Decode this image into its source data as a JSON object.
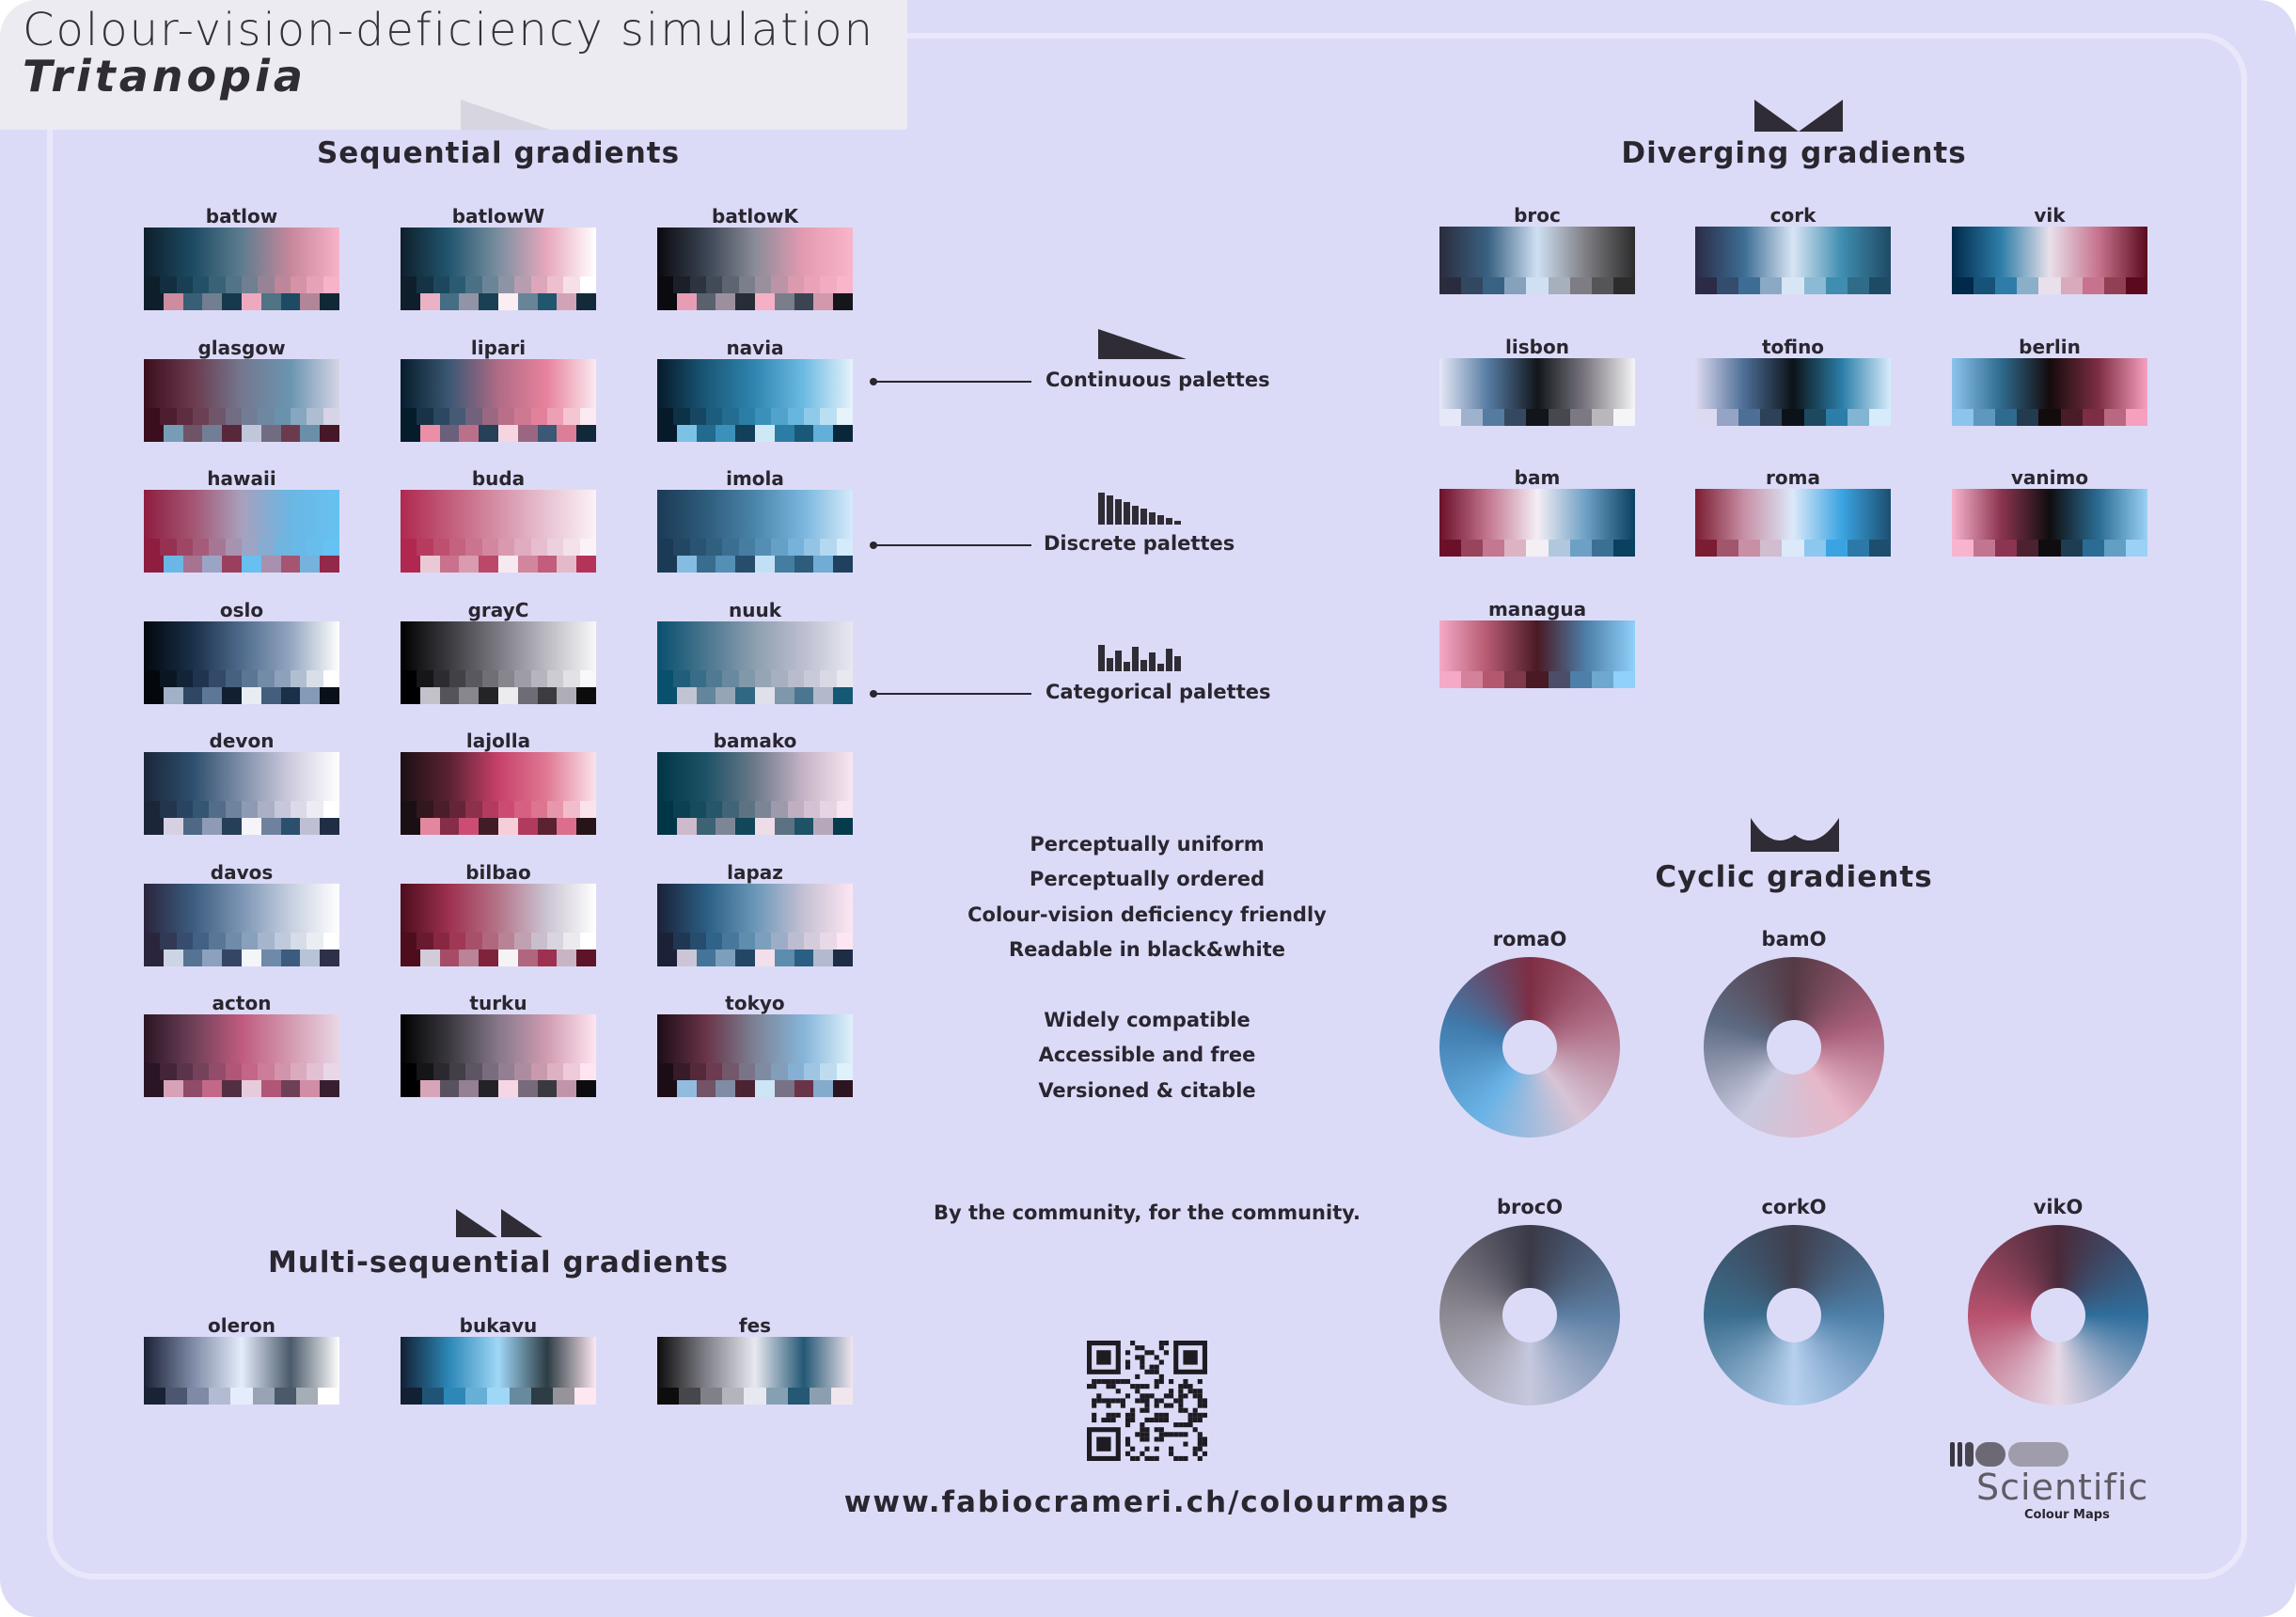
{
  "header": {
    "title": "Colour-vision-deficiency simulation",
    "subtitle": "Tritanopia"
  },
  "sections": {
    "sequential": "Sequential gradients",
    "diverging": "Diverging gradients",
    "multi": "Multi-sequential gradients",
    "cyclic": "Cyclic gradients"
  },
  "legend": {
    "continuous": "Continuous palettes",
    "discrete": "Discrete palettes",
    "categorical": "Categorical palettes"
  },
  "features": [
    "Perceptually uniform",
    "Perceptually ordered",
    "Colour-vision deficiency friendly",
    "Readable in black&white",
    "Widely compatible",
    "Accessible and free",
    "Versioned & citable"
  ],
  "community": "By the community, for the community.",
  "url": "www.fabiocrameri.ch/colourmaps",
  "logo": {
    "name": "Scientific",
    "tagline": "Colour Maps"
  },
  "colors": {
    "background": "#dcdbf7",
    "ink": "#2a2630"
  },
  "sequential_maps": [
    {
      "name": "batlow",
      "stops": [
        "#0e1f2b",
        "#1d4b63",
        "#5d7d8f",
        "#c7879b",
        "#f7b3c8"
      ]
    },
    {
      "name": "batlowW",
      "stops": [
        "#0e1f2b",
        "#22566f",
        "#7a8fa0",
        "#e8a8bd",
        "#ffffff"
      ]
    },
    {
      "name": "batlowK",
      "stops": [
        "#0a0a0f",
        "#3a4452",
        "#8a8c99",
        "#e49bb1",
        "#f9b5ca"
      ]
    },
    {
      "name": "glasgow",
      "stops": [
        "#3b0e1e",
        "#6b3a4d",
        "#74788f",
        "#6a95b0",
        "#d6d4e6"
      ]
    },
    {
      "name": "lipari",
      "stops": [
        "#051c2b",
        "#3b5874",
        "#b06b85",
        "#e8839d",
        "#fbeaf1"
      ]
    },
    {
      "name": "navia",
      "stops": [
        "#061a2a",
        "#1a5878",
        "#2f86b0",
        "#6dbbe3",
        "#e7f3fb"
      ]
    },
    {
      "name": "hawaii",
      "stops": [
        "#8e1d40",
        "#a45572",
        "#a8a0bd",
        "#6ab6e3",
        "#66c2f2"
      ]
    },
    {
      "name": "buda",
      "stops": [
        "#b0284f",
        "#c25d7b",
        "#d690a7",
        "#e8c3d3",
        "#fbf2f7"
      ]
    },
    {
      "name": "imola",
      "stops": [
        "#1b3a55",
        "#2e5c7b",
        "#4b85ab",
        "#7ab6de",
        "#d4ebfb"
      ]
    },
    {
      "name": "oslo",
      "stops": [
        "#03080e",
        "#1a2f48",
        "#4f6b8c",
        "#93a6c0",
        "#ffffff"
      ]
    },
    {
      "name": "grayC",
      "stops": [
        "#000000",
        "#3c3b40",
        "#7b7a82",
        "#bcbbc3",
        "#f8f8fa"
      ]
    },
    {
      "name": "nuuk",
      "stops": [
        "#08506e",
        "#4a7690",
        "#8c9fb0",
        "#bdbfd0",
        "#e8e8f1"
      ]
    },
    {
      "name": "devon",
      "stops": [
        "#1b2639",
        "#2d4f6e",
        "#7f8fa9",
        "#cfcbdf",
        "#ffffff"
      ]
    },
    {
      "name": "lajolla",
      "stops": [
        "#1a1013",
        "#5b2233",
        "#c7416a",
        "#e07a93",
        "#fbe3ec"
      ]
    },
    {
      "name": "bamako",
      "stops": [
        "#003546",
        "#1e5266",
        "#6b7a8a",
        "#c7b4c7",
        "#f8e6f2"
      ]
    },
    {
      "name": "davos",
      "stops": [
        "#2a253d",
        "#3c5c7f",
        "#7c95b4",
        "#c6cfe0",
        "#ffffff"
      ]
    },
    {
      "name": "bilbao",
      "stops": [
        "#4d0d1c",
        "#9e3150",
        "#b57489",
        "#cbc5d3",
        "#ffffff"
      ]
    },
    {
      "name": "lapaz",
      "stops": [
        "#1b2137",
        "#2a5e83",
        "#6a97b8",
        "#c5c1d4",
        "#fde6f2"
      ]
    },
    {
      "name": "acton",
      "stops": [
        "#2a1524",
        "#6e4058",
        "#c05b7e",
        "#d49aaf",
        "#e9d7e7"
      ]
    },
    {
      "name": "turku",
      "stops": [
        "#000000",
        "#3b3940",
        "#86788a",
        "#d09cb1",
        "#ffe5f1"
      ]
    },
    {
      "name": "tokyo",
      "stops": [
        "#1c0c16",
        "#6a3448",
        "#7d8296",
        "#86b5d9",
        "#dff1fb"
      ]
    }
  ],
  "diverging_maps": [
    {
      "name": "broc",
      "stops": [
        "#2a2c3d",
        "#3a6283",
        "#cfe0f3",
        "#7d7d83",
        "#2c2c2c"
      ]
    },
    {
      "name": "cork",
      "stops": [
        "#2b2b46",
        "#3d6d94",
        "#d8e5f5",
        "#3f8db0",
        "#1f4a63"
      ]
    },
    {
      "name": "vik",
      "stops": [
        "#00294a",
        "#2d7da8",
        "#e8e0ea",
        "#c7738e",
        "#5a0a1c"
      ]
    },
    {
      "name": "lisbon",
      "stops": [
        "#e6e8f7",
        "#557ba1",
        "#12161c",
        "#7c7982",
        "#f5f4f6"
      ]
    },
    {
      "name": "tofino",
      "stops": [
        "#dcdaf1",
        "#4d6e96",
        "#0c1318",
        "#2b7ea8",
        "#d7ecfb"
      ]
    },
    {
      "name": "berlin",
      "stops": [
        "#8cc4ee",
        "#2f6b8f",
        "#140b0c",
        "#7e2e44",
        "#f6a0bf"
      ]
    },
    {
      "name": "bam",
      "stops": [
        "#6c1029",
        "#c37790",
        "#f4eef5",
        "#6da0c5",
        "#0a4060"
      ]
    },
    {
      "name": "roma",
      "stops": [
        "#7b1d31",
        "#c88fa5",
        "#dbe9f9",
        "#3aa4e2",
        "#1d4e6f"
      ]
    },
    {
      "name": "vanimo",
      "stops": [
        "#f8b4cf",
        "#8c3550",
        "#0f0d0f",
        "#2b6c94",
        "#9ad1f5"
      ]
    },
    {
      "name": "managua",
      "stops": [
        "#f5a9c6",
        "#b3586f",
        "#4a1a24",
        "#4d7fa8",
        "#8fd1fa"
      ]
    }
  ],
  "multi_maps": [
    {
      "name": "oleron",
      "stops": [
        "#1a2236",
        "#7e8aa6",
        "#e5ecfb",
        "#4a5a6a",
        "#ffffff"
      ]
    },
    {
      "name": "bukavu",
      "stops": [
        "#122033",
        "#2d88b8",
        "#9fd7f7",
        "#2e3d45",
        "#fde8f1"
      ]
    },
    {
      "name": "fes",
      "stops": [
        "#0d0d0d",
        "#808089",
        "#e8e8f0",
        "#245874",
        "#f1e6ee"
      ]
    }
  ],
  "cyclic_maps": [
    {
      "name": "romaO",
      "stops": [
        "#7d2e44",
        "#b07088",
        "#d7c4d5",
        "#6ab3e6",
        "#3f7aab",
        "#7d2e44"
      ]
    },
    {
      "name": "bamO",
      "stops": [
        "#553a45",
        "#a85f7a",
        "#e7b7c9",
        "#c8c9df",
        "#5d6b82",
        "#553a45"
      ]
    },
    {
      "name": "brocO",
      "stops": [
        "#3a3a48",
        "#5d7fa3",
        "#c6c8dd",
        "#8e8a93",
        "#3a3a48"
      ]
    },
    {
      "name": "corkO",
      "stops": [
        "#3f3f4e",
        "#4d7fa8",
        "#b7d0ef",
        "#3a6d8d",
        "#3f3f4e"
      ]
    },
    {
      "name": "vikO",
      "stops": [
        "#4a2a3a",
        "#2f6e9c",
        "#e6d8e6",
        "#b8526f",
        "#4a2a3a"
      ]
    }
  ]
}
